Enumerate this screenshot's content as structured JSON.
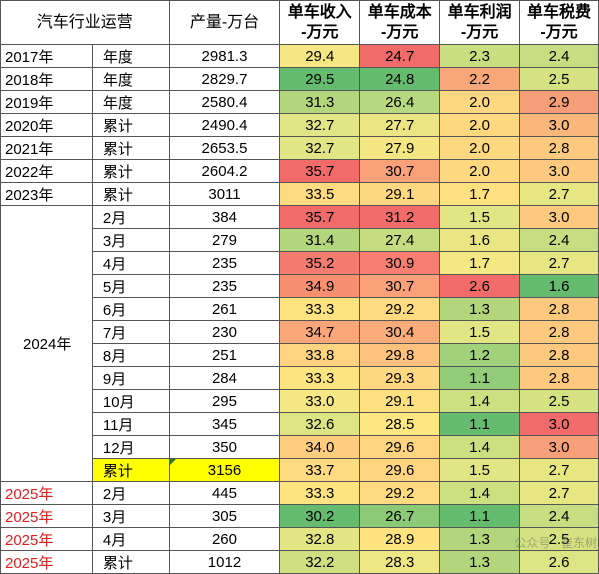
{
  "header": {
    "title": "汽车行业运营",
    "production": "产量-万台",
    "metrics": [
      "单车收入\n-万元",
      "单车成本\n-万元",
      "单车利润\n-万元",
      "单车税费\n-万元"
    ]
  },
  "rows": [
    {
      "year": "2017年",
      "type": "年度",
      "prod": "2981.3",
      "vals": [
        "29.4",
        "24.7",
        "2.3",
        "2.4"
      ],
      "colors": [
        "#f6e782",
        "#f26b6b",
        "#c8de81",
        "#c6dd81"
      ]
    },
    {
      "year": "2018年",
      "type": "年度",
      "prod": "2829.7",
      "vals": [
        "29.5",
        "24.8",
        "2.2",
        "2.5"
      ],
      "colors": [
        "#66bc6e",
        "#66bc6e",
        "#f7a77a",
        "#d5e282"
      ]
    },
    {
      "year": "2019年",
      "type": "年度",
      "prod": "2580.4",
      "vals": [
        "31.3",
        "26.4",
        "2.0",
        "2.9"
      ],
      "colors": [
        "#b3d67d",
        "#b8d87f",
        "#fed880",
        "#f59e78"
      ]
    },
    {
      "year": "2020年",
      "type": "累计",
      "prod": "2490.4",
      "vals": [
        "32.7",
        "27.7",
        "2.0",
        "3.0"
      ],
      "colors": [
        "#e2e585",
        "#ece583",
        "#fed880",
        "#f9b77b"
      ]
    },
    {
      "year": "2021年",
      "type": "累计",
      "prod": "2653.5",
      "vals": [
        "32.7",
        "27.9",
        "2.0",
        "2.8"
      ],
      "colors": [
        "#e2e585",
        "#f4e783",
        "#fed880",
        "#fcc97e"
      ]
    },
    {
      "year": "2022年",
      "type": "累计",
      "prod": "2604.2",
      "vals": [
        "35.7",
        "30.7",
        "2.0",
        "3.0"
      ],
      "colors": [
        "#f26b6b",
        "#fba17a",
        "#fed880",
        "#fcc97e"
      ]
    },
    {
      "year": "2023年",
      "type": "累计",
      "prod": "3011",
      "vals": [
        "33.5",
        "29.1",
        "1.7",
        "2.7"
      ],
      "colors": [
        "#feda80",
        "#fed880",
        "#fee080",
        "#e6e683"
      ]
    },
    {
      "year": "",
      "type": "2月",
      "prod": "384",
      "vals": [
        "35.7",
        "31.2",
        "1.5",
        "3.0"
      ],
      "colors": [
        "#f26b6b",
        "#f26b6b",
        "#e1e583",
        "#fcc97e"
      ]
    },
    {
      "year": "",
      "type": "3月",
      "prod": "279",
      "vals": [
        "31.4",
        "27.4",
        "1.6",
        "2.4"
      ],
      "colors": [
        "#b3d67d",
        "#c6dc80",
        "#eae683",
        "#c6dd81"
      ]
    },
    {
      "year": "",
      "type": "4月",
      "prod": "235",
      "vals": [
        "35.2",
        "30.9",
        "1.7",
        "2.7"
      ],
      "colors": [
        "#f47b6f",
        "#f77f71",
        "#f3e883",
        "#e6e683"
      ]
    },
    {
      "year": "",
      "type": "5月",
      "prod": "235",
      "vals": [
        "34.9",
        "30.7",
        "2.6",
        "1.6"
      ],
      "colors": [
        "#f7906f",
        "#fba17a",
        "#f26b6b",
        "#66bc6e"
      ]
    },
    {
      "year": "",
      "type": "6月",
      "prod": "261",
      "vals": [
        "33.3",
        "29.2",
        "1.3",
        "2.8"
      ],
      "colors": [
        "#fee480",
        "#fedb80",
        "#b3d67d",
        "#fcc97e"
      ]
    },
    {
      "year": "",
      "type": "7月",
      "prod": "230",
      "vals": [
        "34.7",
        "30.4",
        "1.5",
        "2.8"
      ],
      "colors": [
        "#fba77a",
        "#fbac7b",
        "#e1e583",
        "#fcc97e"
      ]
    },
    {
      "year": "",
      "type": "8月",
      "prod": "251",
      "vals": [
        "33.8",
        "29.8",
        "1.2",
        "2.8"
      ],
      "colors": [
        "#fed480",
        "#fdc27d",
        "#a2d17c",
        "#fcc97e"
      ]
    },
    {
      "year": "",
      "type": "9月",
      "prod": "284",
      "vals": [
        "33.3",
        "29.3",
        "1.1",
        "2.8"
      ],
      "colors": [
        "#fee480",
        "#fed880",
        "#92cc79",
        "#fcc97e"
      ]
    },
    {
      "year": "",
      "type": "10月",
      "prod": "295",
      "vals": [
        "33.0",
        "29.1",
        "1.4",
        "2.5"
      ],
      "colors": [
        "#f5e783",
        "#fee080",
        "#cde081",
        "#d5e282"
      ]
    },
    {
      "year": "",
      "type": "11月",
      "prod": "345",
      "vals": [
        "32.6",
        "28.5",
        "1.1",
        "3.0"
      ],
      "colors": [
        "#dee483",
        "#fee680",
        "#66bc6e",
        "#f26b6b"
      ]
    },
    {
      "year": "",
      "type": "12月",
      "prod": "350",
      "vals": [
        "34.0",
        "29.6",
        "1.4",
        "3.0"
      ],
      "colors": [
        "#fecd7e",
        "#fed480",
        "#cde081",
        "#f8a07a"
      ]
    },
    {
      "year": "",
      "type": "累计",
      "prod": "3156",
      "vals": [
        "33.7",
        "29.6",
        "1.5",
        "2.7"
      ],
      "colors": [
        "#fedb80",
        "#fed480",
        "#e1e583",
        "#e6e683"
      ],
      "highlight": true
    },
    {
      "year": "2025年",
      "type": "2月",
      "prod": "445",
      "vals": [
        "33.3",
        "29.2",
        "1.4",
        "2.7"
      ],
      "colors": [
        "#fee480",
        "#fedb80",
        "#cde081",
        "#e6e683"
      ],
      "red": true
    },
    {
      "year": "2025年",
      "type": "3月",
      "prod": "305",
      "vals": [
        "30.2",
        "26.7",
        "1.1",
        "2.4"
      ],
      "colors": [
        "#66bc6e",
        "#8cca78",
        "#66bc6e",
        "#c6dd81"
      ],
      "red": true
    },
    {
      "year": "2025年",
      "type": "4月",
      "prod": "260",
      "vals": [
        "32.8",
        "28.9",
        "1.3",
        "2.5"
      ],
      "colors": [
        "#e4e584",
        "#fee380",
        "#b3d67d",
        "#d5e282"
      ],
      "red": true
    },
    {
      "year": "2025年",
      "type": "累计",
      "prod": "1012",
      "vals": [
        "32.2",
        "28.3",
        "1.3",
        "2.6"
      ],
      "colors": [
        "#cfdf82",
        "#eee784",
        "#b3d67d",
        "#dde483"
      ],
      "red": true
    }
  ],
  "merged_year": "2024年",
  "watermark": "公众号 · 崔东树"
}
